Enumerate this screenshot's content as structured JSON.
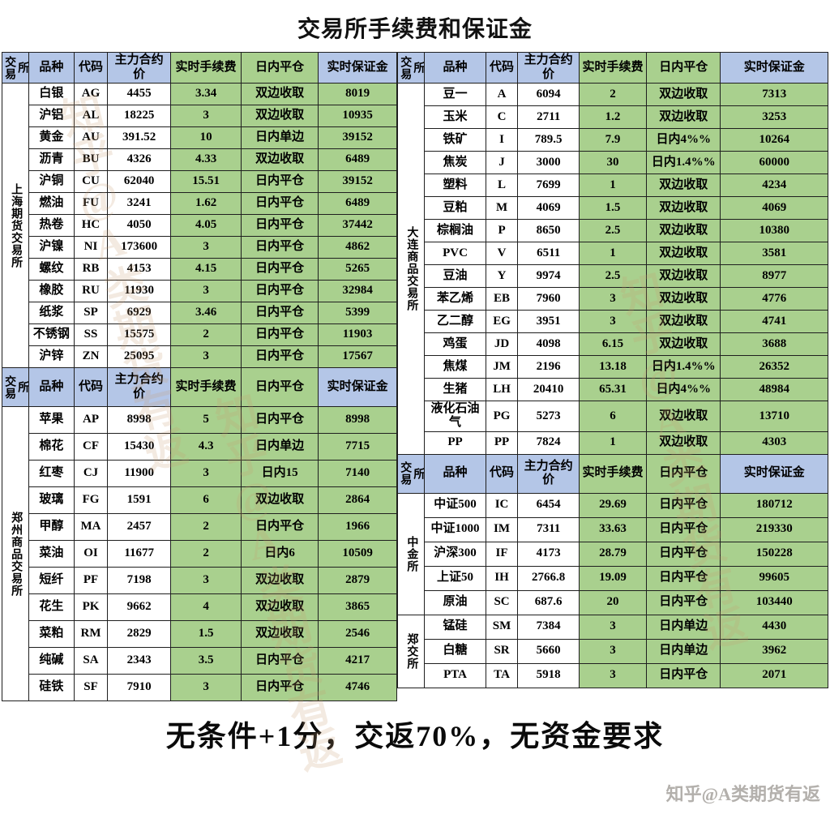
{
  "title": "交易所手续费和保证金",
  "footer_note": "无条件+1分，交返70%，无资金要求",
  "credit": "知乎@A类期货有返",
  "watermark_text": "知乎@A类期货有返",
  "columns": [
    "交易所",
    "品种",
    "代码",
    "主力合约价",
    "实时手续费",
    "日内平仓",
    "实时保证金"
  ],
  "colors": {
    "header_blue": "#b4c6e7",
    "cell_green": "#a9d08e",
    "border": "#1f1f1f"
  },
  "tables": [
    {
      "id": "left",
      "sections": [
        {
          "groups": [
            {
              "label": "上海期货交易所",
              "rows": 13
            }
          ],
          "rows": [
            [
              "白银",
              "AG",
              "4455",
              "3.34",
              "双边收取",
              "8019"
            ],
            [
              "沪铝",
              "AL",
              "18225",
              "3",
              "双边收取",
              "10935"
            ],
            [
              "黄金",
              "AU",
              "391.52",
              "10",
              "日内单边",
              "39152"
            ],
            [
              "沥青",
              "BU",
              "4326",
              "4.33",
              "双边收取",
              "6489"
            ],
            [
              "沪铜",
              "CU",
              "62040",
              "15.51",
              "日内平仓",
              "39152"
            ],
            [
              "燃油",
              "FU",
              "3241",
              "1.62",
              "日内平仓",
              "6489"
            ],
            [
              "热卷",
              "HC",
              "4050",
              "4.05",
              "日内平仓",
              "37442"
            ],
            [
              "沪镍",
              "NI",
              "173600",
              "3",
              "日内平仓",
              "4862"
            ],
            [
              "螺纹",
              "RB",
              "4153",
              "4.15",
              "日内平仓",
              "5265"
            ],
            [
              "橡胶",
              "RU",
              "11930",
              "3",
              "日内平仓",
              "32984"
            ],
            [
              "纸浆",
              "SP",
              "6929",
              "3.46",
              "日内平仓",
              "5399"
            ],
            [
              "不锈钢",
              "SS",
              "15575",
              "2",
              "日内平仓",
              "11903"
            ],
            [
              "沪锌",
              "ZN",
              "25095",
              "3",
              "日内平仓",
              "17567"
            ]
          ]
        },
        {
          "groups": [
            {
              "label": "郑州商品交易所",
              "rows": 11
            }
          ],
          "rows": [
            [
              "苹果",
              "AP",
              "8998",
              "5",
              "日内平仓",
              "8998"
            ],
            [
              "棉花",
              "CF",
              "15430",
              "4.3",
              "日内单边",
              "7715"
            ],
            [
              "红枣",
              "CJ",
              "11900",
              "3",
              "日内15",
              "7140"
            ],
            [
              "玻璃",
              "FG",
              "1591",
              "6",
              "双边收取",
              "2864"
            ],
            [
              "甲醇",
              "MA",
              "2457",
              "2",
              "日内平仓",
              "1966"
            ],
            [
              "菜油",
              "OI",
              "11677",
              "2",
              "日内6",
              "10509"
            ],
            [
              "短纤",
              "PF",
              "7198",
              "3",
              "双边收取",
              "2879"
            ],
            [
              "花生",
              "PK",
              "9662",
              "4",
              "双边收取",
              "3865"
            ],
            [
              "菜粕",
              "RM",
              "2829",
              "1.5",
              "双边收取",
              "2546"
            ],
            [
              "纯碱",
              "SA",
              "2343",
              "3.5",
              "日内平仓",
              "4217"
            ],
            [
              "硅铁",
              "SF",
              "7910",
              "3",
              "日内平仓",
              "4746"
            ]
          ]
        }
      ]
    },
    {
      "id": "right",
      "sections": [
        {
          "groups": [
            {
              "label": "大连商品交易所",
              "rows": 16
            }
          ],
          "rows": [
            [
              "豆一",
              "A",
              "6094",
              "2",
              "双边收取",
              "7313"
            ],
            [
              "玉米",
              "C",
              "2711",
              "1.2",
              "双边收取",
              "3253"
            ],
            [
              "铁矿",
              "I",
              "789.5",
              "7.9",
              "日内4%%",
              "10264"
            ],
            [
              "焦炭",
              "J",
              "3000",
              "30",
              "日内1.4%%",
              "60000"
            ],
            [
              "塑料",
              "L",
              "7699",
              "1",
              "双边收取",
              "4234"
            ],
            [
              "豆粕",
              "M",
              "4069",
              "1.5",
              "双边收取",
              "4069"
            ],
            [
              "棕榈油",
              "P",
              "8650",
              "2.5",
              "双边收取",
              "10380"
            ],
            [
              "PVC",
              "V",
              "6511",
              "1",
              "双边收取",
              "3581"
            ],
            [
              "豆油",
              "Y",
              "9974",
              "2.5",
              "双边收取",
              "8977"
            ],
            [
              "苯乙烯",
              "EB",
              "7960",
              "3",
              "双边收取",
              "4776"
            ],
            [
              "乙二醇",
              "EG",
              "3951",
              "3",
              "双边收取",
              "4741"
            ],
            [
              "鸡蛋",
              "JD",
              "4098",
              "6.15",
              "双边收取",
              "3688"
            ],
            [
              "焦煤",
              "JM",
              "2196",
              "13.18",
              "日内1.4%%",
              "26352"
            ],
            [
              "生猪",
              "LH",
              "20410",
              "65.31",
              "日内4%%",
              "48984"
            ],
            [
              "液化石油气",
              "PG",
              "5273",
              "6",
              "双边收取",
              "13710"
            ],
            [
              "PP",
              "PP",
              "7824",
              "1",
              "双边收取",
              "4303"
            ]
          ]
        },
        {
          "groups": [
            {
              "label": "中金所",
              "rows": 5
            },
            {
              "label": "郑交所",
              "rows": 3
            }
          ],
          "rows": [
            [
              "中证500",
              "IC",
              "6454",
              "29.69",
              "日内平仓",
              "180712"
            ],
            [
              "中证1000",
              "IM",
              "7311",
              "33.63",
              "日内平仓",
              "219330"
            ],
            [
              "沪深300",
              "IF",
              "4173",
              "28.79",
              "日内平仓",
              "150228"
            ],
            [
              "上证50",
              "IH",
              "2766.8",
              "19.09",
              "日内平仓",
              "99605"
            ],
            [
              "原油",
              "SC",
              "687.6",
              "20",
              "日内平仓",
              "103440"
            ],
            [
              "锰硅",
              "SM",
              "7384",
              "3",
              "日内单边",
              "4430"
            ],
            [
              "白糖",
              "SR",
              "5660",
              "3",
              "日内单边",
              "3962"
            ],
            [
              "PTA",
              "TA",
              "5918",
              "3",
              "日内平仓",
              "2071"
            ]
          ]
        }
      ]
    }
  ]
}
